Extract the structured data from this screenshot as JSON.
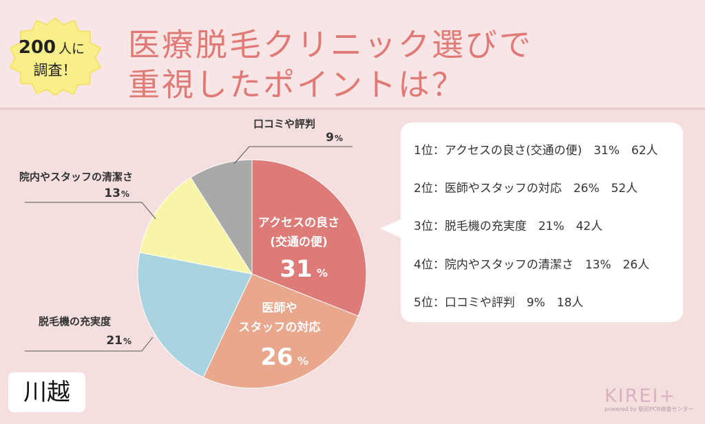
{
  "header": {
    "badge_line1_number": "200",
    "badge_line1_unit": "人に",
    "badge_line2": "調査！",
    "title_line1": "医療脱毛クリニック選びで",
    "title_line2": "重視したポイントは？"
  },
  "chart_data": {
    "type": "pie",
    "title": "医療脱毛クリニック選びで重視したポイントは？",
    "slices": [
      {
        "label": "アクセスの良さ(交通の便)",
        "label_lines": [
          "アクセスの良さ",
          "(交通の便)"
        ],
        "value": 31,
        "count": 62,
        "color": "#dc7b77"
      },
      {
        "label": "医師やスタッフの対応",
        "label_lines": [
          "医師や",
          "スタッフの対応"
        ],
        "value": 26,
        "count": 52,
        "color": "#e9a78e"
      },
      {
        "label": "脱毛機の充実度",
        "label_lines": [
          "脱毛機の充実度"
        ],
        "value": 21,
        "count": 42,
        "color": "#a8d3df"
      },
      {
        "label": "院内やスタッフの清潔さ",
        "label_lines": [
          "院内やスタッフの清潔さ"
        ],
        "value": 13,
        "count": 26,
        "color": "#f8f5a8"
      },
      {
        "label": "口コミや評判",
        "label_lines": [
          "口コミや評判"
        ],
        "value": 9,
        "count": 18,
        "color": "#a9a9a9"
      }
    ],
    "percent_unit": "%"
  },
  "ranking": [
    {
      "text": "1位：アクセスの良さ(交通の便)　31%　62人"
    },
    {
      "text": "2位：医師やスタッフの対応　26%　52人"
    },
    {
      "text": "3位：脱毛機の充実度　21%　42人"
    },
    {
      "text": "4位：院内やスタッフの清潔さ　13%　26人"
    },
    {
      "text": "5位：口コミや評判　9%　18人"
    }
  ],
  "place": "川越",
  "logo": {
    "name": "KIREI+",
    "tagline": "powered by 駅前PCR検査センター"
  }
}
